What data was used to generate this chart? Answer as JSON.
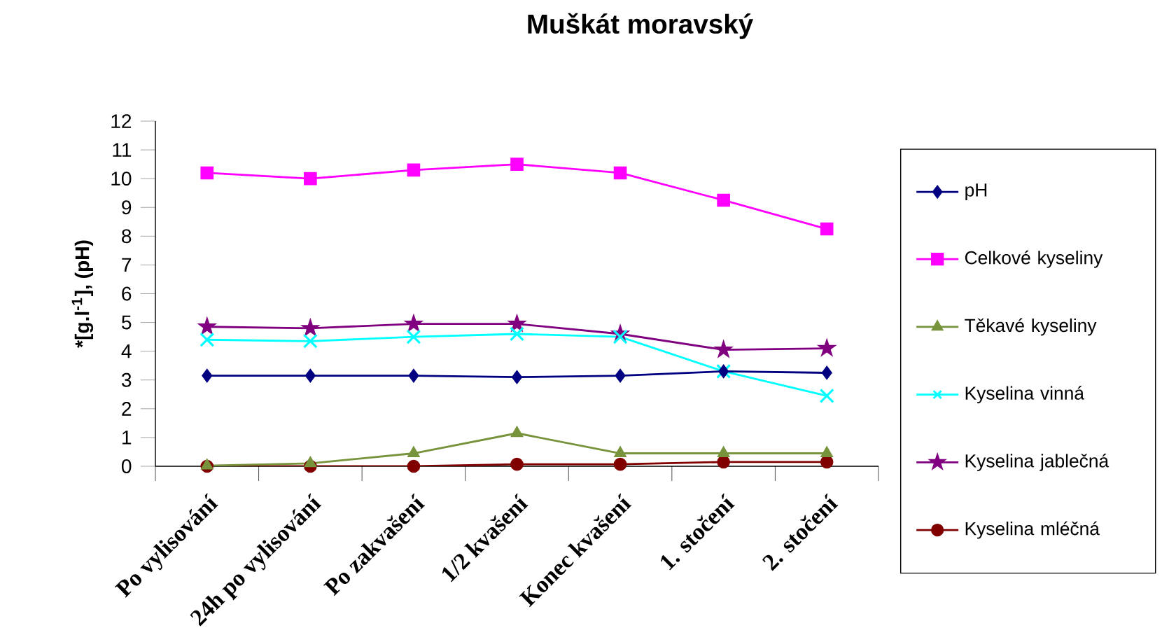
{
  "chart_data": {
    "type": "line",
    "title": "Muškát moravský",
    "ylabel": "*[g.l$^{-1}$], (pH)",
    "categories": [
      "Po vylisování",
      "24h po vylisování",
      "Po zakvašení",
      "1/2 kvašení",
      "Konec kvašení",
      "1. stočení",
      "2. stočení"
    ],
    "series": [
      {
        "name": "pH",
        "color": "#000080",
        "marker": "diamond",
        "values": [
          3.15,
          3.15,
          3.15,
          3.1,
          3.15,
          3.3,
          3.25
        ]
      },
      {
        "name": "Celkové kyseliny",
        "color": "#ff00ff",
        "marker": "square",
        "values": [
          10.2,
          10.0,
          10.3,
          10.5,
          10.2,
          9.25,
          8.25
        ]
      },
      {
        "name": "Těkavé kyseliny",
        "color": "#77933c",
        "marker": "triangle",
        "values": [
          0.02,
          0.1,
          0.45,
          1.15,
          0.45,
          0.45,
          0.45
        ]
      },
      {
        "name": "Kyselina vinná",
        "color": "#00ffff",
        "marker": "cross",
        "values": [
          4.4,
          4.35,
          4.5,
          4.6,
          4.5,
          3.3,
          2.45
        ]
      },
      {
        "name": "Kyselina jablečná",
        "color": "#800080",
        "marker": "star",
        "values": [
          4.85,
          4.8,
          4.95,
          4.95,
          4.6,
          4.05,
          4.1
        ]
      },
      {
        "name": "Kyselina mléčná",
        "color": "#800000",
        "marker": "circle",
        "values": [
          0,
          0,
          0,
          0.07,
          0.07,
          0.15,
          0.15
        ]
      }
    ],
    "ylim": [
      0,
      12
    ],
    "yticks": [
      0,
      1,
      2,
      3,
      4,
      5,
      6,
      7,
      8,
      9,
      10,
      11,
      12
    ],
    "grid": false,
    "legend": "right",
    "line_style": "solid"
  }
}
